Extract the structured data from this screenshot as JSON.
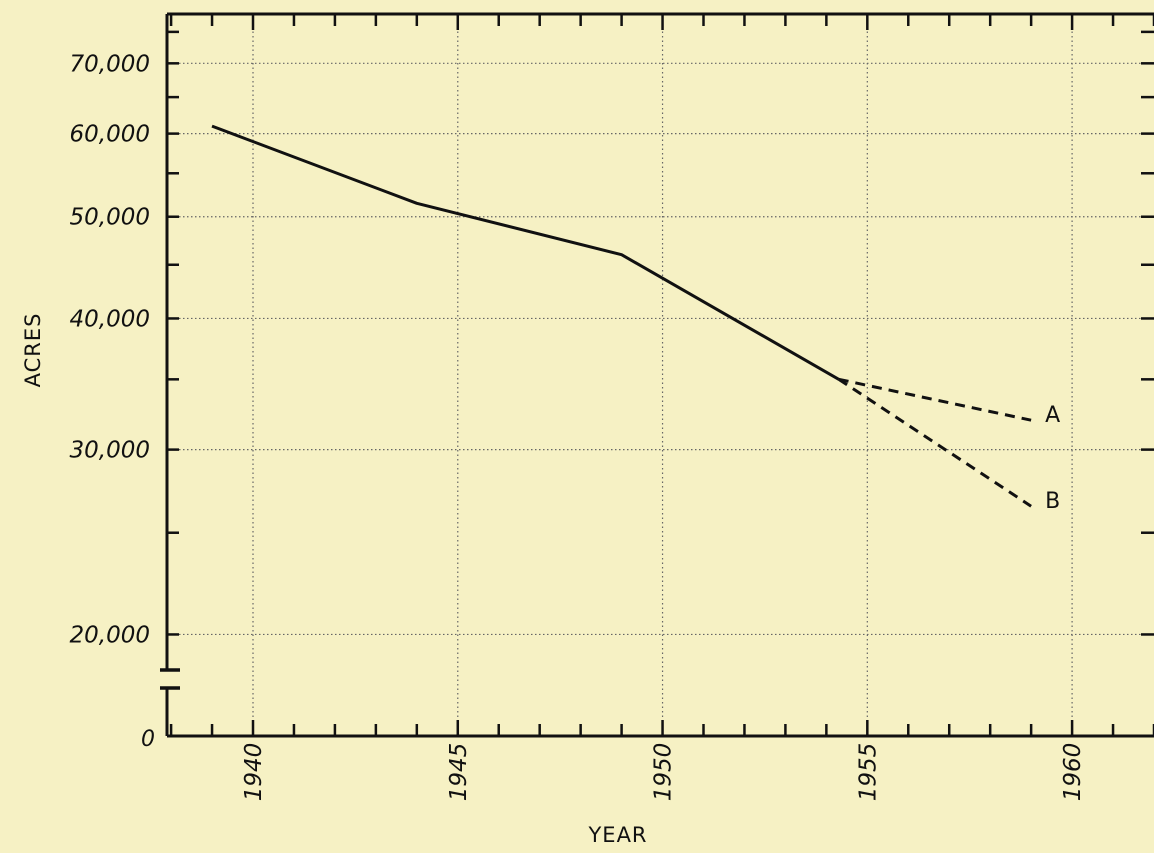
{
  "chart_data": {
    "type": "line",
    "xlabel": "YEAR",
    "ylabel": "ACRES",
    "x_ticks": [
      "1940",
      "1945",
      "1950",
      "1955",
      "1960"
    ],
    "y_ticks": [
      "70,000",
      "60,000",
      "50,000",
      "40,000",
      "30,000",
      "20,000"
    ],
    "y_zero_label": "0",
    "y_scale": "log",
    "y_axis_break": true,
    "xlim": [
      1937.9,
      1962
    ],
    "ylim": [
      18500,
      78000
    ],
    "grid": "dotted",
    "series": [
      {
        "name": "",
        "style": "solid",
        "x": [
          1939,
          1944,
          1949,
          1954.3
        ],
        "y": [
          61000,
          51500,
          46000,
          35000
        ]
      },
      {
        "name": "A",
        "style": "dashed",
        "x": [
          1954.3,
          1959
        ],
        "y": [
          35000,
          32000
        ]
      },
      {
        "name": "B",
        "style": "dashed",
        "x": [
          1954.3,
          1959
        ],
        "y": [
          35000,
          26500
        ]
      }
    ],
    "colors": {
      "background": "#f6f1c4",
      "ink": "#111111",
      "grid": "#666666"
    }
  }
}
